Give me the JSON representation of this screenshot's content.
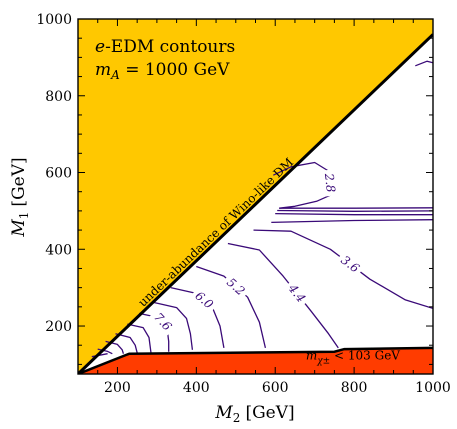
{
  "chart_data": {
    "type": "contour",
    "title": "",
    "xlabel": {
      "symbol": "M",
      "sub": "2",
      "unit": "[GeV]"
    },
    "ylabel": {
      "symbol": "M",
      "sub": "1",
      "unit": "[GeV]"
    },
    "xlim": [
      100,
      1000
    ],
    "ylim": [
      75,
      1000
    ],
    "x_ticks": [
      200,
      400,
      600,
      800,
      1000
    ],
    "y_ticks": [
      200,
      400,
      600,
      800,
      1000
    ],
    "annotation": {
      "line1_prefix": "e",
      "line1_rest": "-EDM contours",
      "line2_symbol": "m",
      "line2_sub": "A",
      "line2_rest": " = 1000 GeV"
    },
    "regions": [
      {
        "label": "under-abundance of Wino-like DM",
        "color": "#ffc800",
        "boundary": [
          [
            100,
            75
          ],
          [
            1000,
            960
          ]
        ]
      },
      {
        "label_symbol": "m",
        "label_sub": "χ±",
        "label_rest": " < 103 GeV",
        "color": "#ff3c00",
        "upper_boundary": [
          [
            100,
            75
          ],
          [
            230,
            128
          ],
          [
            750,
            133
          ],
          [
            775,
            140
          ],
          [
            1000,
            143
          ]
        ]
      }
    ],
    "colors": {
      "contour": "#3a0a78",
      "boundary": "#000000"
    },
    "contours": [
      {
        "level": "2.8",
        "points": [
          [
            595,
            593
          ],
          [
            640,
            615
          ],
          [
            700,
            626
          ],
          [
            735,
            604
          ],
          [
            742,
            542
          ],
          [
            705,
            525
          ],
          [
            650,
            512
          ],
          [
            610,
            507
          ]
        ]
      },
      {
        "level": "",
        "points": [
          [
            955,
            878
          ],
          [
            985,
            890
          ],
          [
            1000,
            886
          ]
        ]
      },
      {
        "level": "",
        "points": [
          [
            610,
            507
          ],
          [
            800,
            507
          ],
          [
            1000,
            508
          ]
        ]
      },
      {
        "level": "",
        "points": [
          [
            605,
            501
          ],
          [
            800,
            499
          ],
          [
            1000,
            500
          ]
        ]
      },
      {
        "level": "",
        "points": [
          [
            600,
            493
          ],
          [
            800,
            490
          ],
          [
            1000,
            490
          ]
        ]
      },
      {
        "level": "",
        "points": [
          [
            590,
            470
          ],
          [
            800,
            475
          ],
          [
            1000,
            477
          ]
        ]
      },
      {
        "level": "3.6",
        "points": [
          [
            545,
            450
          ],
          [
            640,
            447
          ],
          [
            740,
            400
          ],
          [
            840,
            322
          ],
          [
            930,
            268
          ],
          [
            1000,
            246
          ]
        ]
      },
      {
        "level": "4.4",
        "points": [
          [
            480,
            415
          ],
          [
            560,
            398
          ],
          [
            620,
            330
          ],
          [
            690,
            240
          ],
          [
            735,
            180
          ],
          [
            760,
            143
          ]
        ]
      },
      {
        "level": "5.2",
        "points": [
          [
            400,
            355
          ],
          [
            470,
            330
          ],
          [
            530,
            275
          ],
          [
            560,
            210
          ],
          [
            575,
            143
          ]
        ]
      },
      {
        "level": "6.0",
        "points": [
          [
            335,
            300
          ],
          [
            400,
            285
          ],
          [
            440,
            250
          ],
          [
            460,
            200
          ],
          [
            470,
            143
          ]
        ]
      },
      {
        "level": "",
        "points": [
          [
            290,
            262
          ],
          [
            350,
            248
          ],
          [
            375,
            220
          ],
          [
            385,
            180
          ],
          [
            390,
            138
          ]
        ]
      },
      {
        "level": "7.6",
        "points": [
          [
            255,
            233
          ],
          [
            305,
            222
          ],
          [
            325,
            200
          ],
          [
            330,
            160
          ],
          [
            330,
            133
          ]
        ]
      },
      {
        "level": "",
        "points": [
          [
            225,
            205
          ],
          [
            265,
            196
          ],
          [
            280,
            170
          ],
          [
            285,
            130
          ]
        ]
      },
      {
        "level": "",
        "points": [
          [
            195,
            180
          ],
          [
            232,
            170
          ],
          [
            245,
            150
          ],
          [
            250,
            130
          ]
        ]
      },
      {
        "level": "",
        "points": [
          [
            170,
            160
          ],
          [
            200,
            152
          ],
          [
            212,
            138
          ],
          [
            215,
            128
          ]
        ]
      },
      {
        "level": "",
        "points": [
          [
            150,
            140
          ],
          [
            175,
            134
          ],
          [
            187,
            128
          ]
        ]
      },
      {
        "level": "",
        "points": [
          [
            135,
            120
          ],
          [
            160,
            125
          ],
          [
            175,
            128
          ]
        ]
      }
    ]
  }
}
